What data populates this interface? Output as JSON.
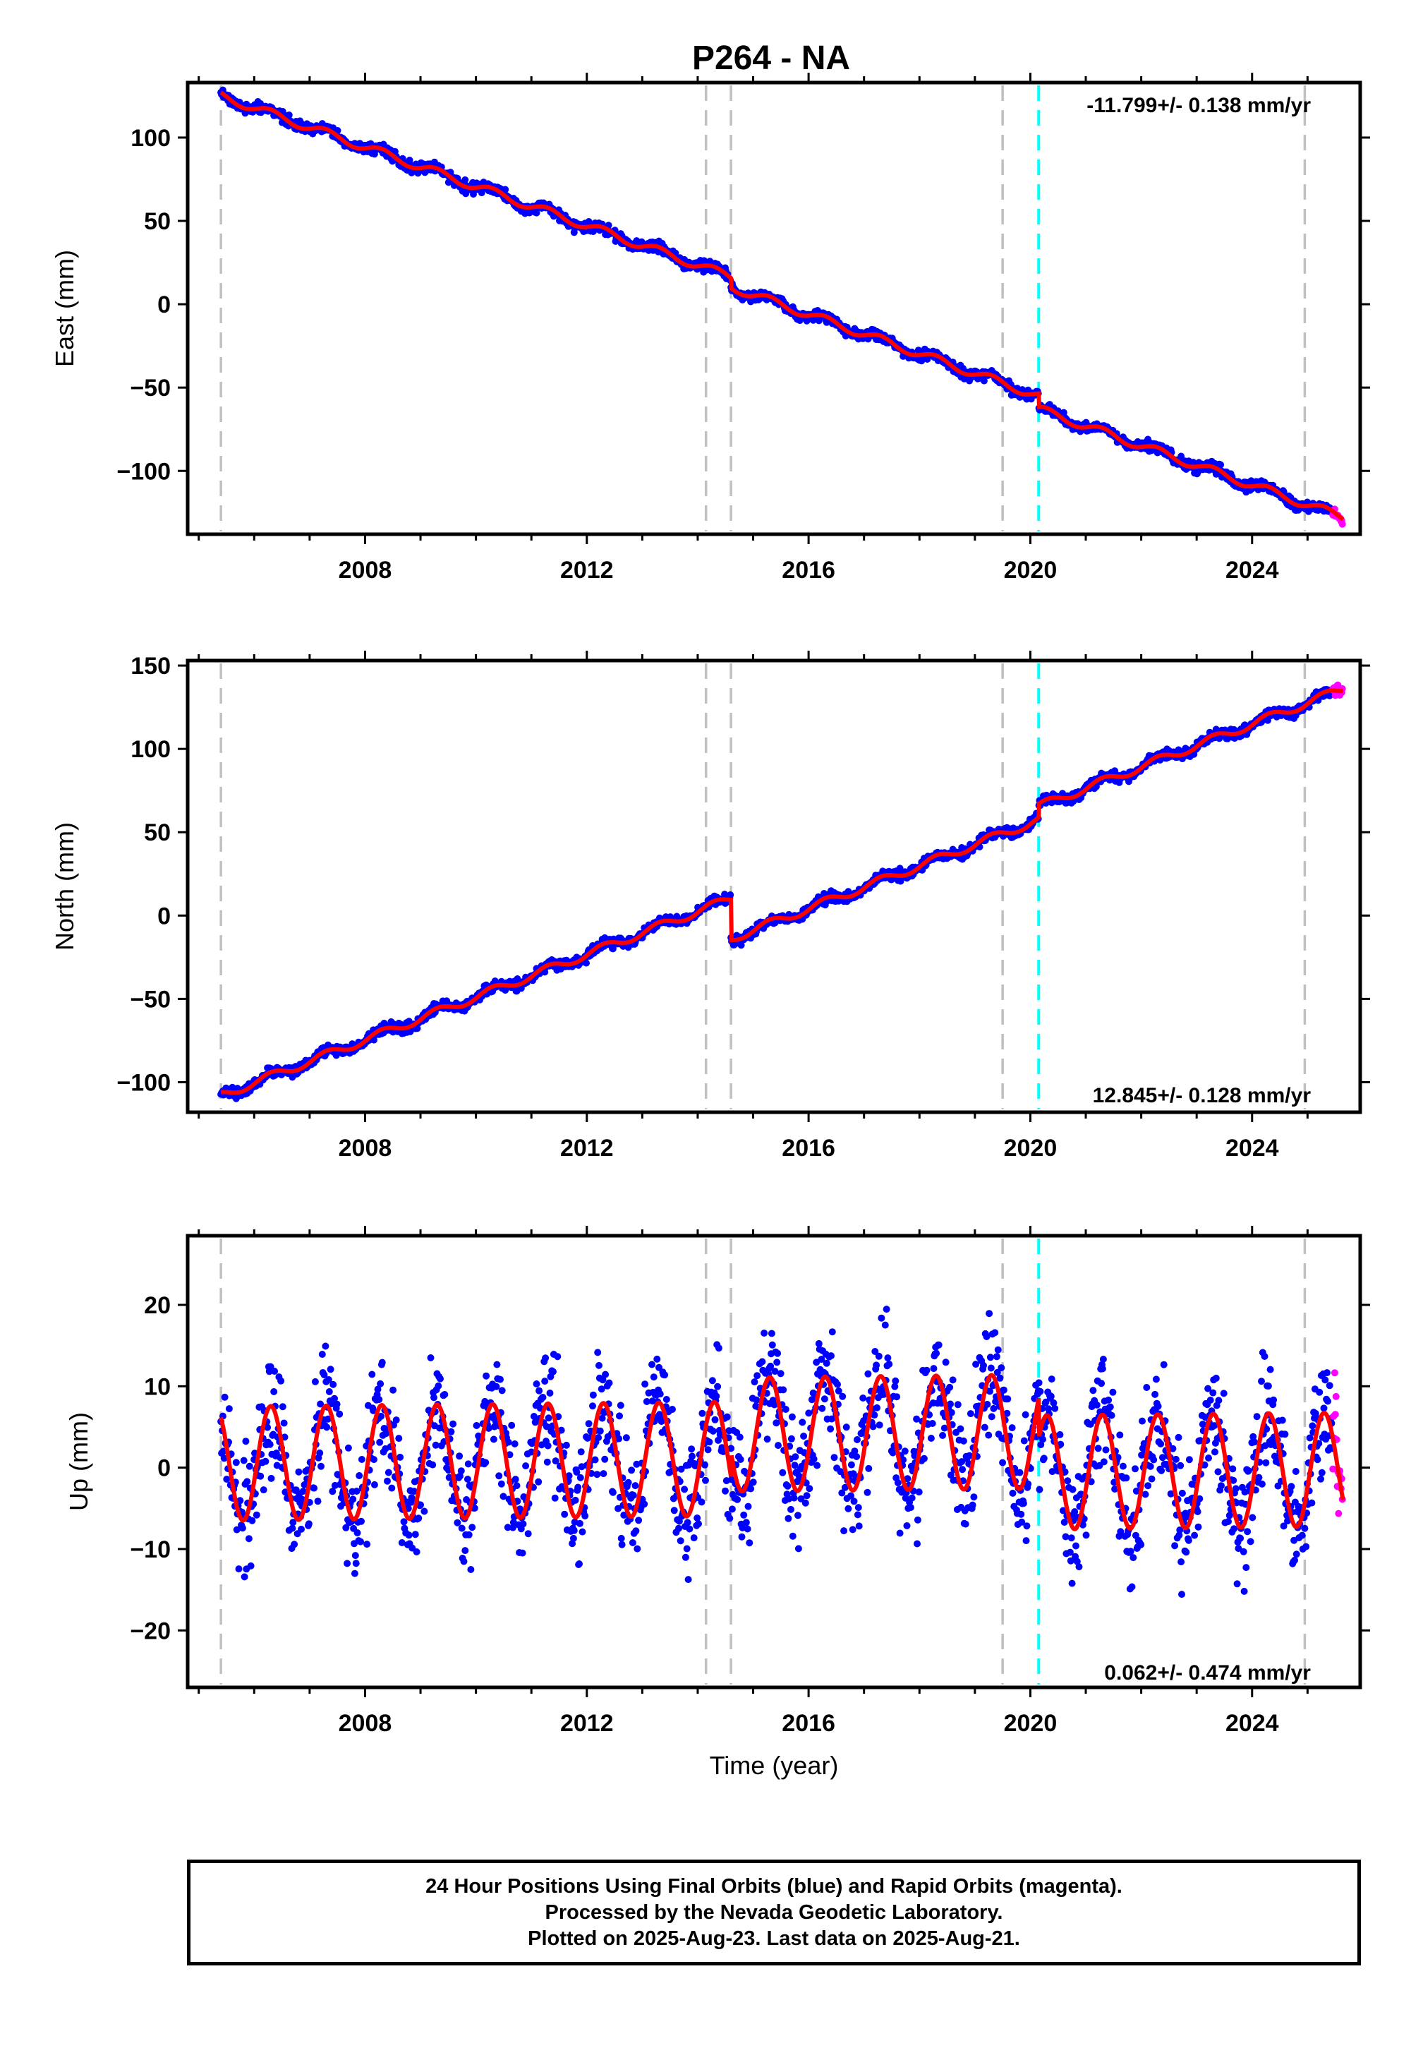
{
  "title": "P264 - NA",
  "xlabel": "Time (year)",
  "colors": {
    "final_orbits": "#0000ff",
    "rapid_orbits": "#ff00ff",
    "model": "#ff0000",
    "event_line": "#c0c0c0",
    "event_line_highlight": "#00ffff"
  },
  "footer": {
    "line1": "24 Hour Positions Using Final Orbits (blue) and Rapid Orbits (magenta).",
    "line2": "Processed by the Nevada Geodetic Laboratory.",
    "line3": "Plotted on 2025-Aug-23. Last data on 2025-Aug-21."
  },
  "chart_data": [
    {
      "type": "scatter",
      "panel": "east",
      "ylabel": "East (mm)",
      "rate_label": "-11.799+/- 0.138 mm/yr",
      "xlim": [
        2004.8,
        2025.95
      ],
      "ylim": [
        -138,
        133
      ],
      "yticks": [
        -100,
        -50,
        0,
        50,
        100
      ],
      "xticks": [
        2008,
        2012,
        2016,
        2020,
        2024
      ],
      "x_range": [
        2005.4,
        2025.64
      ],
      "rapid_x_range": [
        2025.45,
        2025.64
      ],
      "trend": {
        "rate": -11.799,
        "value_at_start": 125,
        "start": 2005.4
      },
      "offsets": [
        {
          "epoch": 2014.6,
          "value": -6
        },
        {
          "epoch": 2020.15,
          "value": -8
        }
      ],
      "seasonal_amplitude": 2.5,
      "scatter_half_width": 3,
      "event_lines": [
        2005.4,
        2014.15,
        2014.6,
        2019.5,
        2020.15,
        2024.95
      ],
      "highlight_event": 2020.15,
      "grid": false
    },
    {
      "type": "scatter",
      "panel": "north",
      "ylabel": "North (mm)",
      "rate_label": "12.845+/- 0.128 mm/yr",
      "xlim": [
        2004.8,
        2025.95
      ],
      "ylim": [
        -118,
        153
      ],
      "yticks": [
        -100,
        -50,
        0,
        50,
        100,
        150
      ],
      "xticks": [
        2008,
        2012,
        2016,
        2020,
        2024
      ],
      "x_range": [
        2005.4,
        2025.64
      ],
      "rapid_x_range": [
        2025.45,
        2025.64
      ],
      "trend": {
        "rate": 12.845,
        "value_at_start": -108,
        "start": 2005.4
      },
      "offsets": [
        {
          "epoch": 2014.6,
          "value": -24
        },
        {
          "epoch": 2020.15,
          "value": 8
        }
      ],
      "seasonal_amplitude": 2.5,
      "scatter_half_width": 3,
      "event_lines": [
        2005.4,
        2014.15,
        2014.6,
        2019.5,
        2020.15,
        2024.95
      ],
      "highlight_event": 2020.15,
      "grid": false
    },
    {
      "type": "scatter",
      "panel": "up",
      "ylabel": "Up (mm)",
      "rate_label": "0.062+/- 0.474 mm/yr",
      "xlim": [
        2004.8,
        2025.95
      ],
      "ylim": [
        -27,
        28.5
      ],
      "yticks": [
        -20,
        -10,
        0,
        10,
        20
      ],
      "xticks": [
        2008,
        2012,
        2016,
        2020,
        2024
      ],
      "x_range": [
        2005.4,
        2025.64
      ],
      "rapid_x_range": [
        2025.45,
        2025.64
      ],
      "trend": {
        "rate": 0.062,
        "value_at_start": 0.5,
        "start": 2005.4
      },
      "offsets": [
        {
          "epoch": 2014.6,
          "value": 3
        },
        {
          "epoch": 2020.15,
          "value": -5
        }
      ],
      "seasonal_amplitude": 7,
      "scatter_half_width": 7,
      "event_lines": [
        2005.4,
        2014.15,
        2014.6,
        2019.5,
        2020.15,
        2024.95
      ],
      "highlight_event": 2020.15,
      "grid": false
    }
  ]
}
